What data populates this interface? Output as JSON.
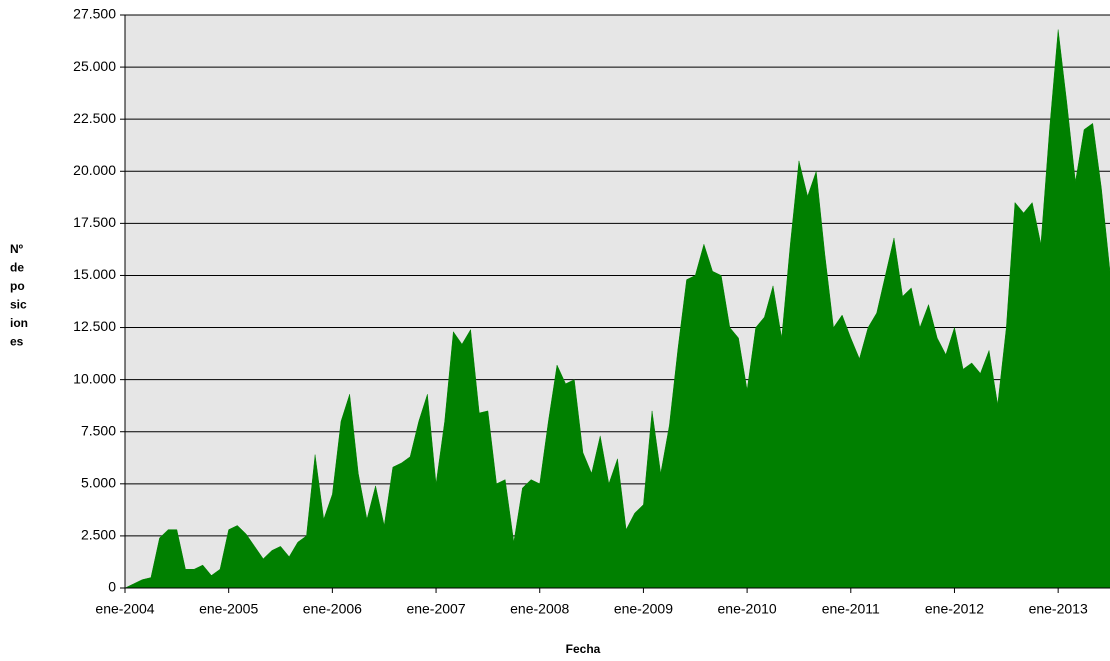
{
  "chart_data": {
    "type": "area",
    "x_label": "Fecha",
    "y_label": [
      "Nº",
      "de",
      "po",
      "sic",
      "ion",
      "es"
    ],
    "x": [
      "2004-01",
      "2004-02",
      "2004-03",
      "2004-04",
      "2004-05",
      "2004-06",
      "2004-07",
      "2004-08",
      "2004-09",
      "2004-10",
      "2004-11",
      "2004-12",
      "2005-01",
      "2005-02",
      "2005-03",
      "2005-04",
      "2005-05",
      "2005-06",
      "2005-07",
      "2005-08",
      "2005-09",
      "2005-10",
      "2005-11",
      "2005-12",
      "2006-01",
      "2006-02",
      "2006-03",
      "2006-04",
      "2006-05",
      "2006-06",
      "2006-07",
      "2006-08",
      "2006-09",
      "2006-10",
      "2006-11",
      "2006-12",
      "2007-01",
      "2007-02",
      "2007-03",
      "2007-04",
      "2007-05",
      "2007-06",
      "2007-07",
      "2007-08",
      "2007-09",
      "2007-10",
      "2007-11",
      "2007-12",
      "2008-01",
      "2008-02",
      "2008-03",
      "2008-04",
      "2008-05",
      "2008-06",
      "2008-07",
      "2008-08",
      "2008-09",
      "2008-10",
      "2008-11",
      "2008-12",
      "2009-01",
      "2009-02",
      "2009-03",
      "2009-04",
      "2009-05",
      "2009-06",
      "2009-07",
      "2009-08",
      "2009-09",
      "2009-10",
      "2009-11",
      "2009-12",
      "2010-01",
      "2010-02",
      "2010-03",
      "2010-04",
      "2010-05",
      "2010-06",
      "2010-07",
      "2010-08",
      "2010-09",
      "2010-10",
      "2010-11",
      "2010-12",
      "2011-01",
      "2011-02",
      "2011-03",
      "2011-04",
      "2011-05",
      "2011-06",
      "2011-07",
      "2011-08",
      "2011-09",
      "2011-10",
      "2011-11",
      "2011-12",
      "2012-01",
      "2012-02",
      "2012-03",
      "2012-04",
      "2012-05",
      "2012-06",
      "2012-07",
      "2012-08",
      "2012-09",
      "2012-10",
      "2012-11",
      "2012-12",
      "2013-01",
      "2013-02",
      "2013-03",
      "2013-04",
      "2013-05",
      "2013-06",
      "2013-07"
    ],
    "series": [
      {
        "color": "#008000",
        "values": [
          0,
          200,
          400,
          500,
          2400,
          2800,
          2800,
          900,
          900,
          1100,
          600,
          900,
          2800,
          3000,
          2600,
          2000,
          1400,
          1800,
          2000,
          1500,
          2200,
          2500,
          6400,
          3300,
          4500,
          8000,
          9300,
          5500,
          3300,
          4900,
          3000,
          5800,
          6000,
          6300,
          8000,
          9300,
          5000,
          8000,
          12300,
          11700,
          12400,
          8400,
          8500,
          5000,
          5200,
          2200,
          4800,
          5200,
          5000,
          8000,
          10700,
          9800,
          10000,
          6500,
          5500,
          7300,
          5000,
          6200,
          2800,
          3600,
          4000,
          8500,
          5500,
          7800,
          11500,
          14800,
          15000,
          16500,
          15200,
          15000,
          12500,
          12000,
          9500,
          12500,
          13000,
          14500,
          12000,
          16500,
          20500,
          18800,
          20000,
          16000,
          12500,
          13100,
          12000,
          11000,
          12500,
          13200,
          15000,
          16800,
          14000,
          14400,
          12500,
          13600,
          12000,
          11200,
          12500,
          10500,
          10800,
          10300,
          11400,
          8800,
          12500,
          18500,
          18000,
          18500,
          16500,
          22000,
          26800,
          23300,
          19500,
          22000,
          22300,
          19200,
          15200
        ]
      }
    ],
    "xlim": [
      "2004-01",
      "2013-07"
    ],
    "xticks": [
      {
        "value": "2004-01",
        "label": "ene-2004"
      },
      {
        "value": "2005-01",
        "label": "ene-2005"
      },
      {
        "value": "2006-01",
        "label": "ene-2006"
      },
      {
        "value": "2007-01",
        "label": "ene-2007"
      },
      {
        "value": "2008-01",
        "label": "ene-2008"
      },
      {
        "value": "2009-01",
        "label": "ene-2009"
      },
      {
        "value": "2010-01",
        "label": "ene-2010"
      },
      {
        "value": "2011-01",
        "label": "ene-2011"
      },
      {
        "value": "2012-01",
        "label": "ene-2012"
      },
      {
        "value": "2013-01",
        "label": "ene-2013"
      }
    ],
    "ylim": [
      0,
      27500
    ],
    "yticks": [
      0,
      {
        "value": 2500,
        "label": "2.500"
      },
      {
        "value": 5000,
        "label": "5.000"
      },
      {
        "value": 7500,
        "label": "7.500"
      },
      {
        "value": 10000,
        "label": "10.000"
      },
      {
        "value": 12500,
        "label": "12.500"
      },
      {
        "value": 15000,
        "label": "15.000"
      },
      {
        "value": 17500,
        "label": "17.500"
      },
      {
        "value": 20000,
        "label": "20.000"
      },
      {
        "value": 22500,
        "label": "22.500"
      },
      {
        "value": 25000,
        "label": "25.000"
      },
      {
        "value": 27500,
        "label": "27.500"
      }
    ],
    "grid": true,
    "plot_background": "#e6e6e6"
  }
}
